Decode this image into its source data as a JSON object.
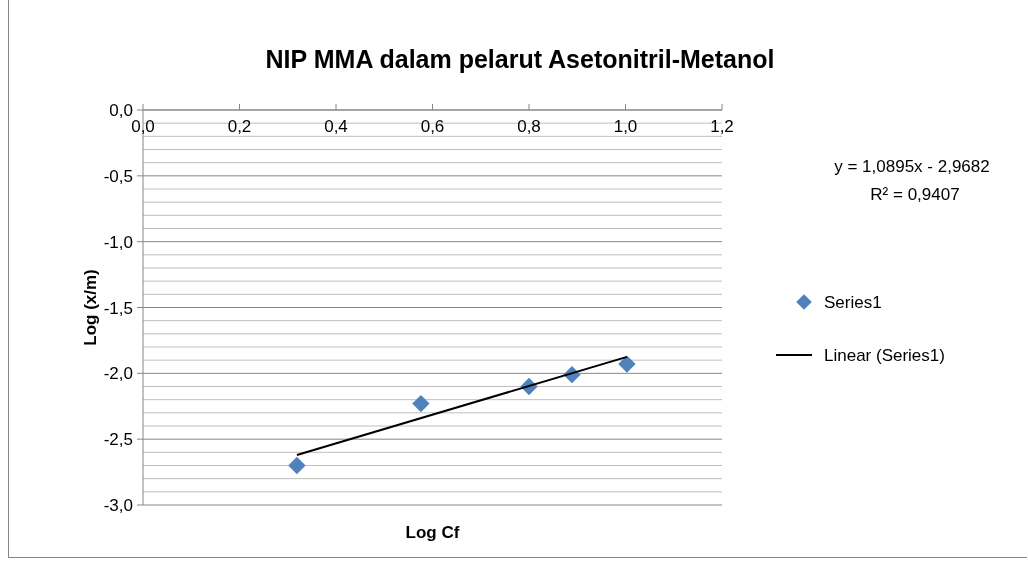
{
  "chart_data": {
    "type": "scatter",
    "title": "NIP MMA dalam pelarut Asetonitril-Metanol",
    "xlabel": "Log Cf",
    "ylabel": "Log (x/m)",
    "xlim": [
      0,
      1.2
    ],
    "xticks": [
      {
        "value": 0,
        "label": "0,0"
      },
      {
        "value": 0.2,
        "label": "0,2"
      },
      {
        "value": 0.4,
        "label": "0,4"
      },
      {
        "value": 0.6,
        "label": "0,6"
      },
      {
        "value": 0.8,
        "label": "0,8"
      },
      {
        "value": 1.0,
        "label": "1,0"
      },
      {
        "value": 1.2,
        "label": "1,2"
      }
    ],
    "ylim": [
      -3,
      0
    ],
    "yticks": [
      {
        "value": 0,
        "label": "0,0"
      },
      {
        "value": -0.1,
        "label": null
      },
      {
        "value": -0.2,
        "label": null
      },
      {
        "value": -0.3,
        "label": null
      },
      {
        "value": -0.4,
        "label": null
      },
      {
        "value": -0.5,
        "label": "-0,5"
      },
      {
        "value": -0.6,
        "label": null
      },
      {
        "value": -0.7,
        "label": null
      },
      {
        "value": -0.8,
        "label": null
      },
      {
        "value": -0.9,
        "label": null
      },
      {
        "value": -1.0,
        "label": "-1,0"
      },
      {
        "value": -1.1,
        "label": null
      },
      {
        "value": -1.2,
        "label": null
      },
      {
        "value": -1.3,
        "label": null
      },
      {
        "value": -1.4,
        "label": null
      },
      {
        "value": -1.5,
        "label": "-1,5"
      },
      {
        "value": -1.6,
        "label": null
      },
      {
        "value": -1.7,
        "label": null
      },
      {
        "value": -1.8,
        "label": null
      },
      {
        "value": -1.9,
        "label": null
      },
      {
        "value": -2.0,
        "label": "-2,0"
      },
      {
        "value": -2.1,
        "label": null
      },
      {
        "value": -2.2,
        "label": null
      },
      {
        "value": -2.3,
        "label": null
      },
      {
        "value": -2.4,
        "label": null
      },
      {
        "value": -2.5,
        "label": "-2,5"
      },
      {
        "value": -2.6,
        "label": null
      },
      {
        "value": -2.7,
        "label": null
      },
      {
        "value": -2.8,
        "label": null
      },
      {
        "value": -2.9,
        "label": null
      },
      {
        "value": -3.0,
        "label": "-3,0"
      }
    ],
    "grid": "y",
    "legend": "right",
    "marker": "diamond",
    "annotations": [
      "y = 1,0895x - 2,9682",
      "R² = 0,9407"
    ],
    "series": [
      {
        "name": "Series1",
        "color": "#4f81bd",
        "x": [
          0.319,
          0.576,
          0.8,
          0.889,
          1.003
        ],
        "values": [
          -2.7,
          -2.23,
          -2.1,
          -2.01,
          -1.93
        ]
      },
      {
        "name": "Linear (Series1)",
        "type": "line",
        "marker": "none",
        "color": "#000000",
        "x": [
          0.319,
          1.003
        ],
        "values": [
          -2.62,
          -1.875
        ]
      }
    ]
  }
}
